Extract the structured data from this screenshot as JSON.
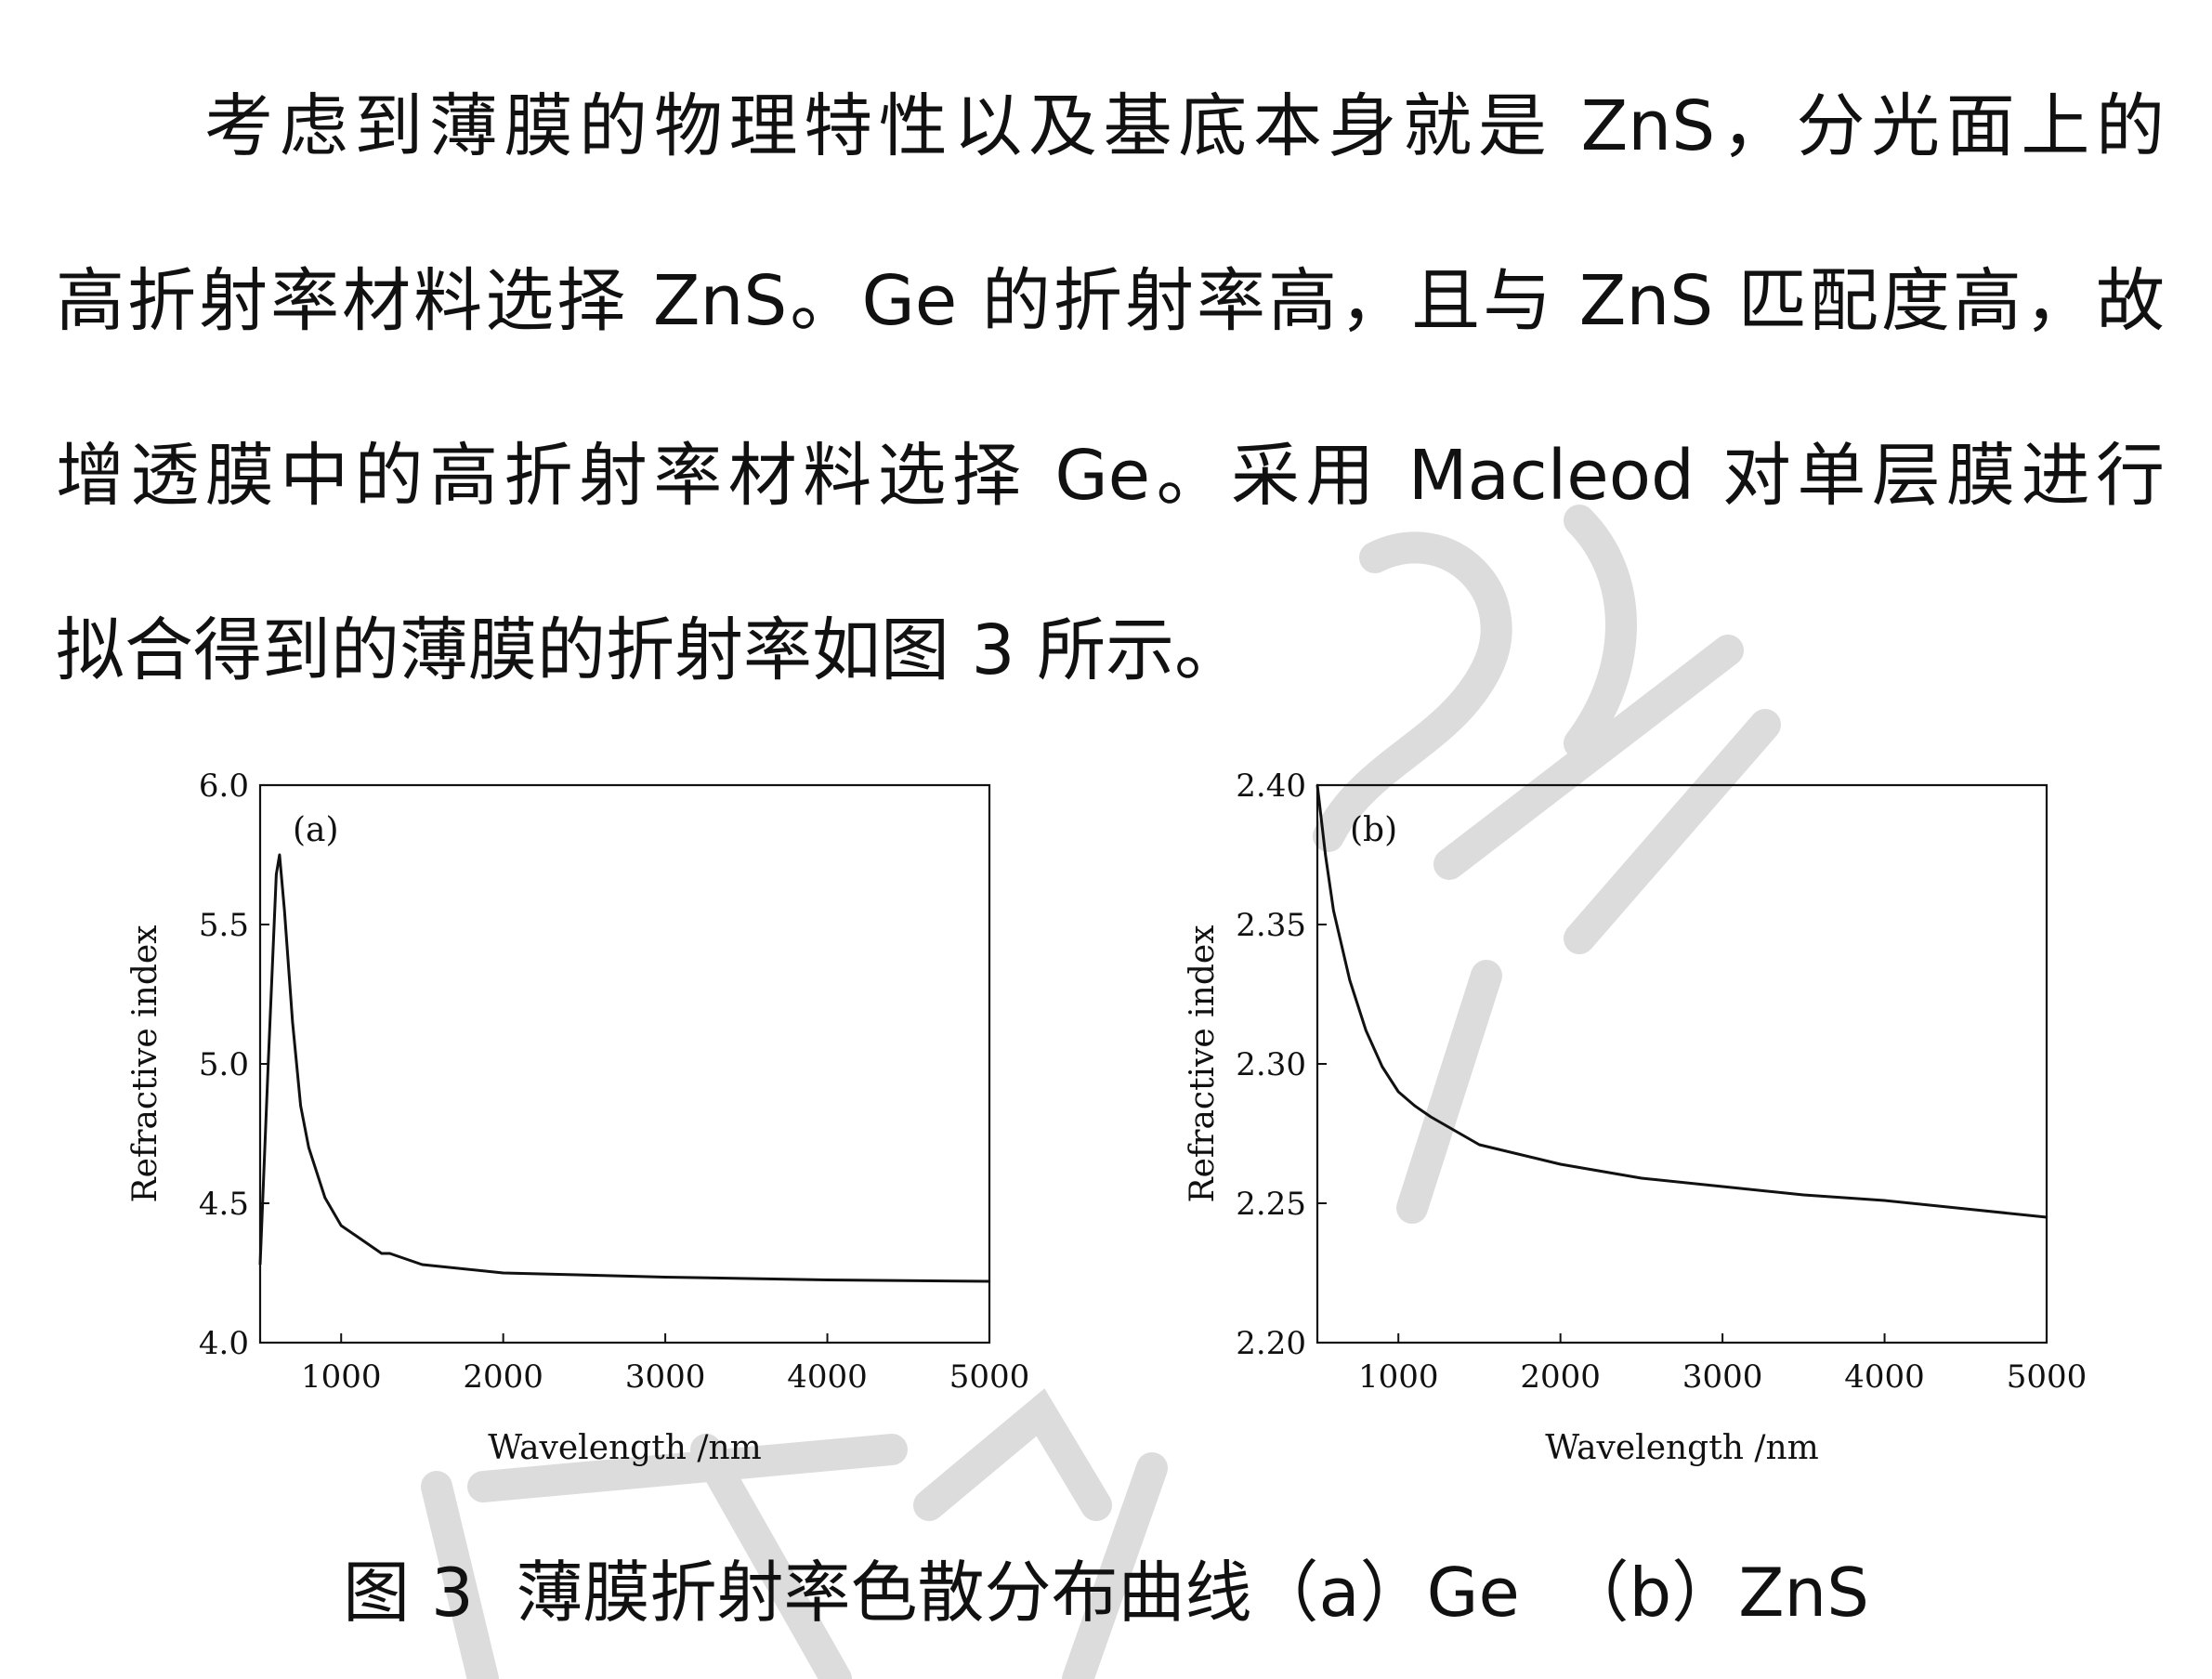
{
  "paragraph": {
    "lines": [
      "考虑到薄膜的物理特性以及基底本身就是 ZnS，分光面上的",
      "高折射率材料选择 ZnS。Ge 的折射率高，且与 ZnS 匹配度高，故",
      "增透膜中的高折射率材料选择 Ge。采用 Macleod 对单层膜进行",
      "拟合得到的薄膜的折射率如图 3 所示。"
    ]
  },
  "figure": {
    "caption": "图 3  薄膜折射率色散分布曲线（a）Ge  （b）ZnS"
  },
  "chart_data": [
    {
      "type": "line",
      "panel_label": "(a)",
      "xlabel": "Wavelength /nm",
      "ylabel": "Refractive index",
      "xlim": [
        500,
        5000
      ],
      "ylim": [
        4.0,
        6.0
      ],
      "xticks": [
        1000,
        2000,
        3000,
        4000,
        5000
      ],
      "yticks": [
        4.0,
        4.5,
        5.0,
        5.5,
        6.0
      ],
      "ytick_labels": [
        "4.0",
        "4.5",
        "5.0",
        "5.5",
        "6.0"
      ],
      "series": [
        {
          "x": [
            500,
            550,
            600,
            620,
            650,
            700,
            750,
            800,
            900,
            1000,
            1100,
            1200,
            1250,
            1300,
            1500,
            2000,
            3000,
            4000,
            5000
          ],
          "y": [
            4.28,
            5.0,
            5.68,
            5.75,
            5.55,
            5.15,
            4.85,
            4.7,
            4.52,
            4.42,
            4.38,
            4.34,
            4.32,
            4.32,
            4.28,
            4.25,
            4.235,
            4.225,
            4.22
          ]
        }
      ]
    },
    {
      "type": "line",
      "panel_label": "(b)",
      "xlabel": "Wavelength /nm",
      "ylabel": "Refractive index",
      "xlim": [
        500,
        5000
      ],
      "ylim": [
        2.2,
        2.4
      ],
      "xticks": [
        1000,
        2000,
        3000,
        4000,
        5000
      ],
      "yticks": [
        2.2,
        2.25,
        2.3,
        2.35,
        2.4
      ],
      "ytick_labels": [
        "2.20",
        "2.25",
        "2.30",
        "2.35",
        "2.40"
      ],
      "series": [
        {
          "x": [
            500,
            550,
            600,
            700,
            800,
            900,
            1000,
            1100,
            1200,
            1500,
            2000,
            2500,
            3000,
            3500,
            4000,
            4500,
            5000
          ],
          "y": [
            2.4,
            2.375,
            2.355,
            2.33,
            2.312,
            2.299,
            2.29,
            2.285,
            2.281,
            2.271,
            2.264,
            2.259,
            2.256,
            2.253,
            2.251,
            2.248,
            2.245
          ]
        }
      ]
    }
  ]
}
